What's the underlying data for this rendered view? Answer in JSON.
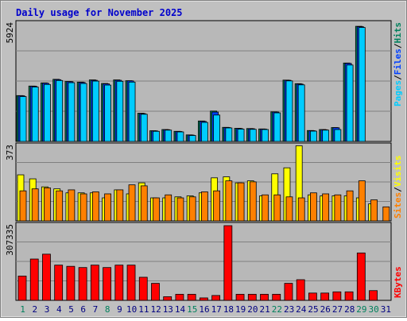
{
  "title": "Daily usage for November 2025",
  "colors": {
    "frame_bg": "#c0c0c0",
    "plot_bg": "#b8b8b8",
    "grid": "#808080",
    "title": "#0000cc",
    "hits": "#00805c",
    "files": "#0040ff",
    "pages": "#00ccff",
    "visits": "#ffff00",
    "sites": "#ff8000",
    "kbytes": "#ff0000",
    "day_normal": "#000080",
    "day_weekend": "#00805c"
  },
  "legend_top": {
    "pages": "Pages",
    "files": "Files",
    "hits": "Hits",
    "sep": "/"
  },
  "legend_mid": {
    "sites": "Sites",
    "visits": "Visits",
    "sep": "/"
  },
  "legend_bot": {
    "kbytes": "KBytes"
  },
  "chart_data": [
    {
      "type": "bar",
      "title": "Daily usage for November 2025",
      "panel": "hits-files-pages",
      "ymax_label": "5924",
      "ylim": [
        0,
        5924
      ],
      "grid": true,
      "categories": [
        "1",
        "2",
        "3",
        "4",
        "5",
        "6",
        "7",
        "8",
        "9",
        "10",
        "11",
        "12",
        "13",
        "14",
        "15",
        "16",
        "17",
        "18",
        "19",
        "20",
        "21",
        "22",
        "23",
        "24",
        "25",
        "26",
        "27",
        "28",
        "29",
        "30",
        "31"
      ],
      "series": [
        {
          "name": "Hits",
          "values": [
            2310,
            2790,
            2950,
            3130,
            3020,
            2990,
            3100,
            2920,
            3100,
            3060,
            1420,
            540,
            600,
            510,
            330,
            1030,
            1530,
            710,
            660,
            650,
            630,
            1490,
            3090,
            2910,
            550,
            600,
            700,
            3950,
            5800,
            0,
            0
          ]
        },
        {
          "name": "Files",
          "values": [
            2300,
            2780,
            2930,
            3110,
            3010,
            2970,
            3080,
            2900,
            3080,
            3050,
            1400,
            530,
            590,
            500,
            320,
            1010,
            1480,
            700,
            650,
            640,
            620,
            1480,
            3080,
            2890,
            540,
            590,
            690,
            3930,
            5780,
            0,
            0
          ]
        },
        {
          "name": "Pages",
          "values": [
            2260,
            2740,
            2870,
            3070,
            2960,
            2920,
            3040,
            2840,
            3030,
            2990,
            1370,
            510,
            570,
            480,
            300,
            960,
            1330,
            680,
            620,
            610,
            600,
            1440,
            3050,
            2850,
            520,
            570,
            600,
            3850,
            5740,
            0,
            0
          ]
        }
      ]
    },
    {
      "type": "bar",
      "panel": "visits-sites",
      "ymax_label": "373",
      "ylim": [
        0,
        373
      ],
      "grid": true,
      "categories": [
        "1",
        "2",
        "3",
        "4",
        "5",
        "6",
        "7",
        "8",
        "9",
        "10",
        "11",
        "12",
        "13",
        "14",
        "15",
        "16",
        "17",
        "18",
        "19",
        "20",
        "21",
        "22",
        "23",
        "24",
        "25",
        "26",
        "27",
        "28",
        "29",
        "30",
        "31"
      ],
      "series": [
        {
          "name": "Visits",
          "values": [
            230,
            210,
            170,
            160,
            140,
            140,
            140,
            115,
            155,
            135,
            190,
            115,
            115,
            120,
            125,
            140,
            215,
            220,
            190,
            200,
            125,
            235,
            265,
            375,
            130,
            125,
            125,
            125,
            115,
            85,
            0
          ]
        },
        {
          "name": "Sites",
          "values": [
            150,
            160,
            165,
            150,
            155,
            135,
            145,
            135,
            155,
            180,
            175,
            115,
            130,
            115,
            120,
            145,
            150,
            200,
            190,
            195,
            130,
            130,
            120,
            115,
            140,
            135,
            130,
            150,
            200,
            105,
            70
          ]
        }
      ]
    },
    {
      "type": "bar",
      "panel": "kbytes",
      "ymax_label": "307335",
      "ylim": [
        0,
        307335
      ],
      "grid": true,
      "categories": [
        "1",
        "2",
        "3",
        "4",
        "5",
        "6",
        "7",
        "8",
        "9",
        "10",
        "11",
        "12",
        "13",
        "14",
        "15",
        "16",
        "17",
        "18",
        "19",
        "20",
        "21",
        "22",
        "23",
        "24",
        "25",
        "26",
        "27",
        "28",
        "29",
        "30",
        "31"
      ],
      "series": [
        {
          "name": "KBytes",
          "values": [
            100000,
            170000,
            190000,
            145000,
            140000,
            135000,
            145000,
            135000,
            145000,
            145000,
            95000,
            70000,
            15000,
            25000,
            25000,
            10000,
            20000,
            307335,
            25000,
            25000,
            25000,
            25000,
            70000,
            85000,
            30000,
            30000,
            35000,
            35000,
            195000,
            40000,
            0
          ]
        }
      ]
    }
  ],
  "weekend_days": [
    "1",
    "8",
    "15",
    "22",
    "29",
    "30"
  ]
}
